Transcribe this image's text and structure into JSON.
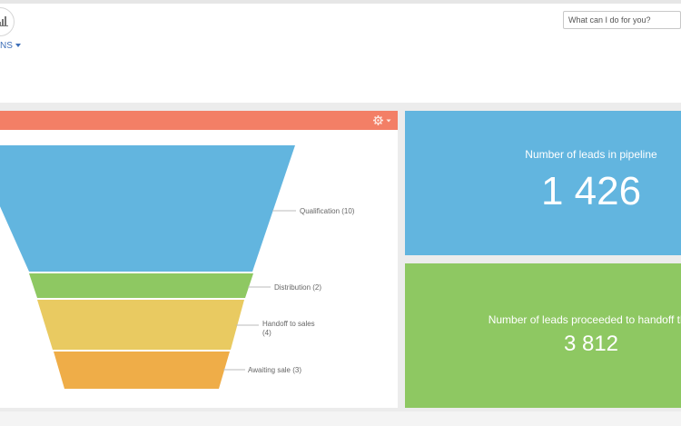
{
  "header": {
    "section_menu_label": "NS",
    "search_placeholder": "What can I do for you?"
  },
  "funnel": {
    "stages": [
      {
        "label": "Qualification (10)",
        "value": 10,
        "color": "#62b5df"
      },
      {
        "label": "Distribution (2)",
        "value": 2,
        "color": "#8ec862"
      },
      {
        "label_lines": [
          "Handoff to sales",
          "(4)"
        ],
        "value": 4,
        "color": "#e9ca61"
      },
      {
        "label": "Awaiting sale (3)",
        "value": 3,
        "color": "#efad48"
      }
    ],
    "header_color": "#f37f66"
  },
  "tiles": {
    "pipeline": {
      "title": "Number of leads in pipeline",
      "value": "1 426",
      "color": "#62b5df"
    },
    "handoff": {
      "title": "Number of leads proceeded to handoff this",
      "value": "3 812",
      "color": "#8ec862"
    }
  }
}
